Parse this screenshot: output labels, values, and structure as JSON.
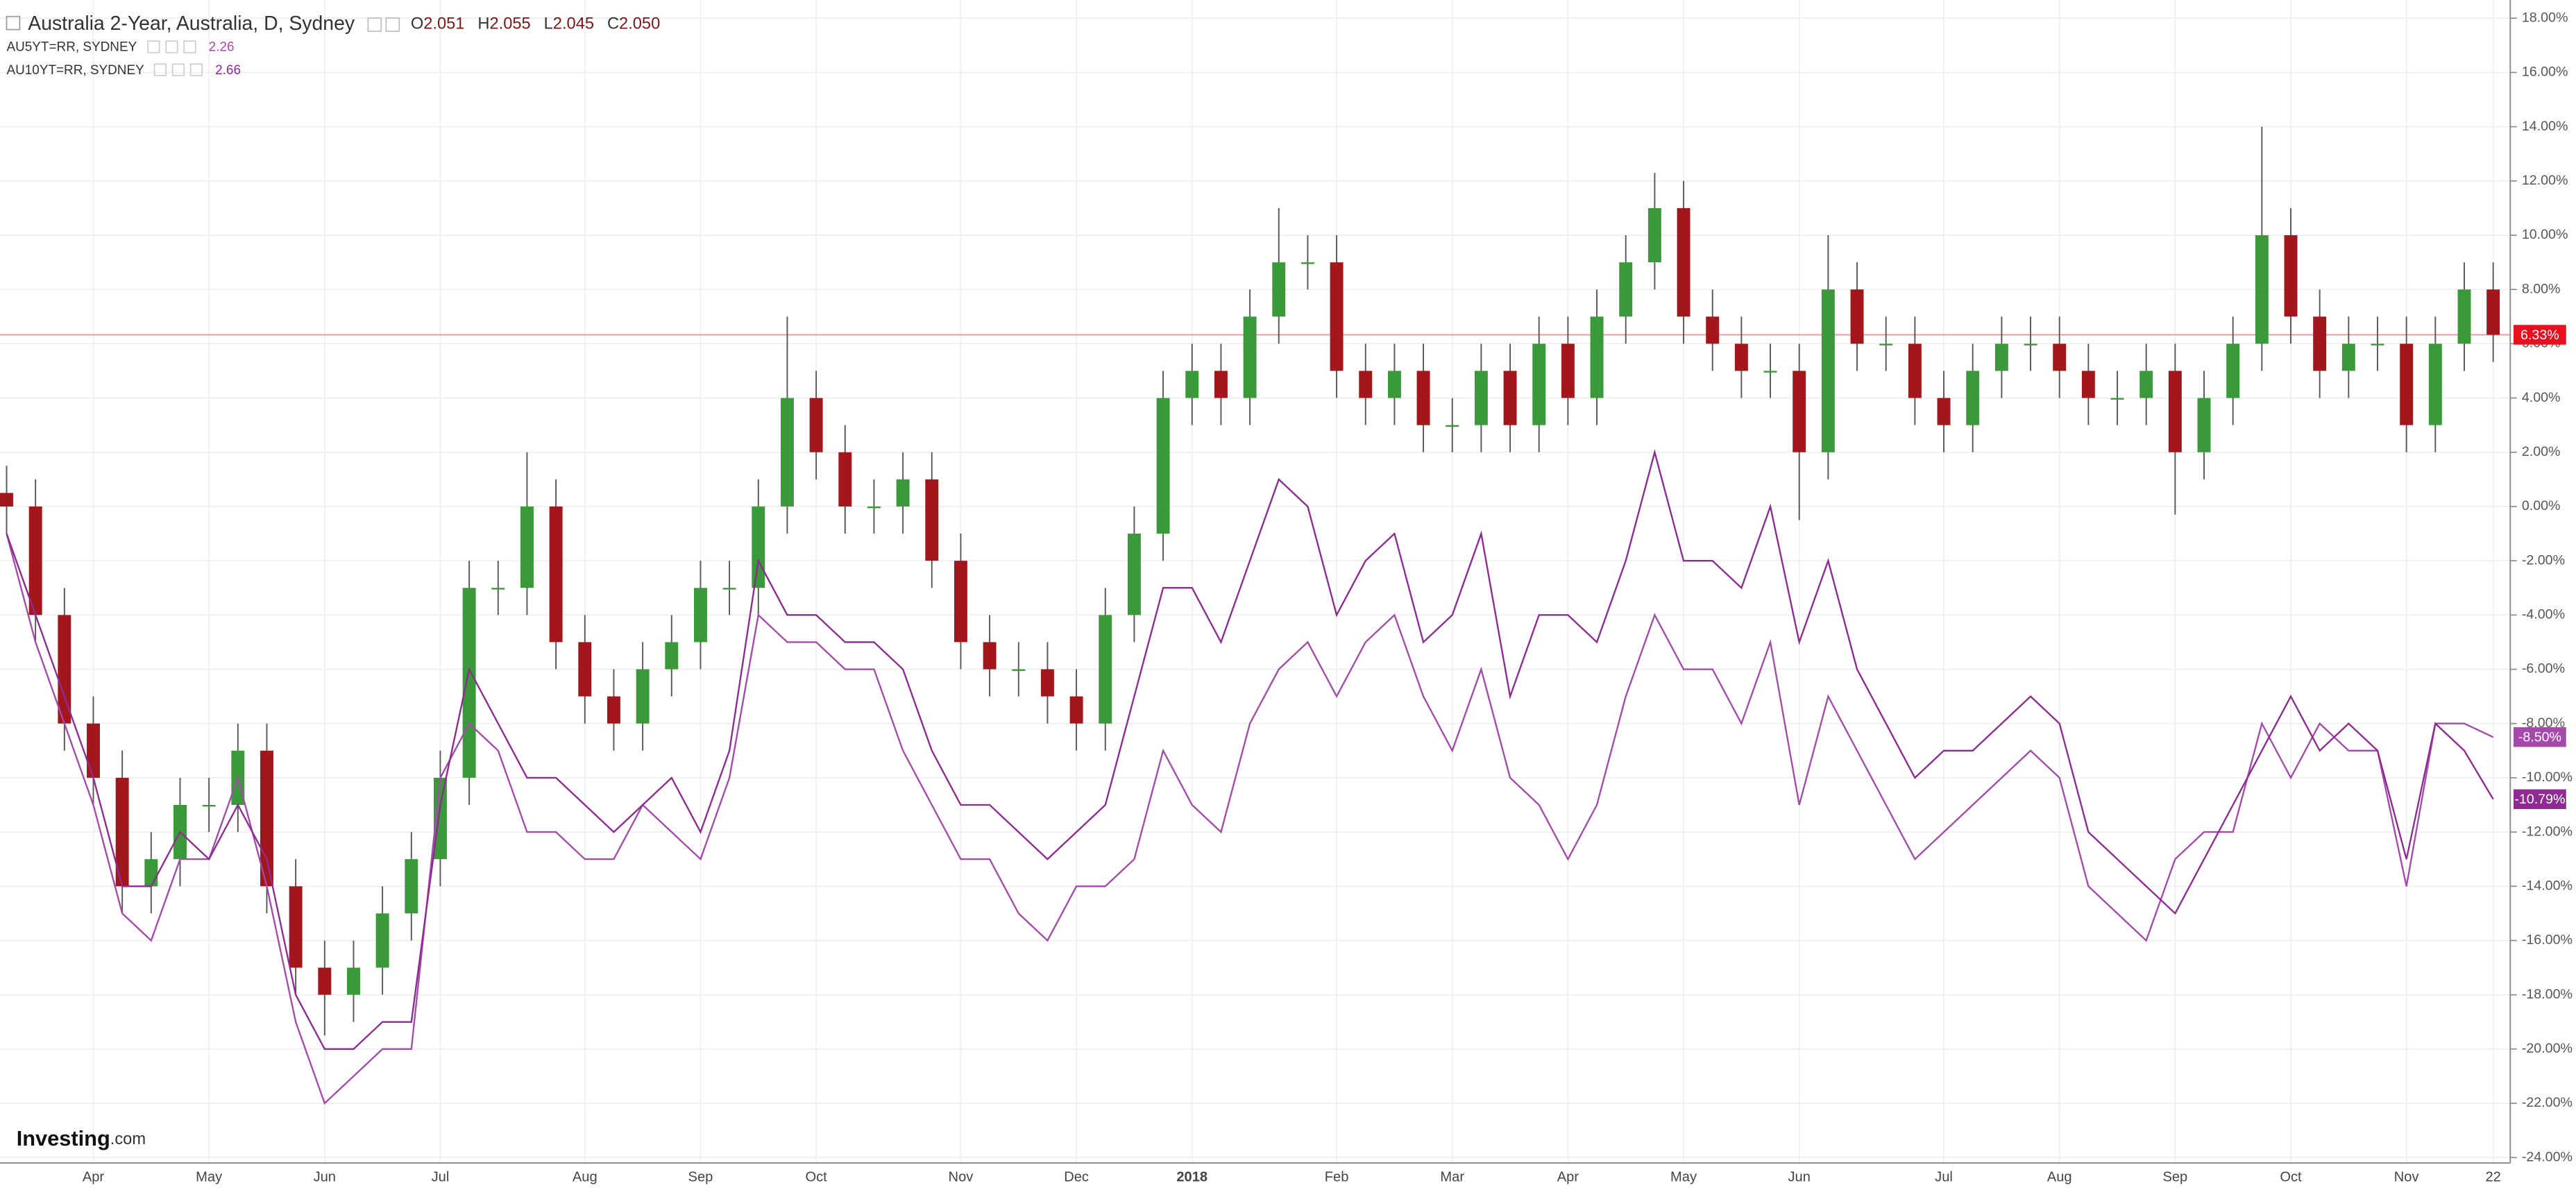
{
  "chart_data": {
    "type": "candlestick",
    "title": "Australia 2-Year, Australia, D, Sydney",
    "ohlc": [
      {
        "label": "O",
        "value": "2.051"
      },
      {
        "label": "H",
        "value": "2.055"
      },
      {
        "label": "L",
        "value": "2.045"
      },
      {
        "label": "C",
        "value": "2.050"
      }
    ],
    "categories": [
      null,
      null,
      null,
      "Apr",
      null,
      null,
      null,
      "May",
      null,
      null,
      null,
      "Jun",
      null,
      null,
      null,
      "Jul",
      null,
      null,
      null,
      null,
      "Aug",
      null,
      null,
      null,
      "Sep",
      null,
      null,
      null,
      "Oct",
      null,
      null,
      null,
      null,
      "Nov",
      null,
      null,
      null,
      "Dec",
      null,
      null,
      null,
      "2018",
      null,
      null,
      null,
      null,
      "Feb",
      null,
      null,
      null,
      "Mar",
      null,
      null,
      null,
      "Apr",
      null,
      null,
      null,
      "May",
      null,
      null,
      null,
      "Jun",
      null,
      null,
      null,
      null,
      "Jul",
      null,
      null,
      null,
      "Aug",
      null,
      null,
      null,
      "Sep",
      null,
      null,
      null,
      "Oct",
      null,
      null,
      null,
      "Nov",
      null,
      null,
      "22"
    ],
    "open": [
      0.5,
      0,
      -4,
      -8,
      -10,
      -14,
      -13,
      -11,
      -11,
      -9,
      -14,
      -17,
      -18,
      -17,
      -15,
      -13,
      -10,
      -3,
      -3,
      0,
      -5,
      -7,
      -8,
      -6,
      -5,
      -3,
      -3,
      0,
      4,
      2,
      0,
      0,
      1,
      -2,
      -5,
      -6,
      -6,
      -7,
      -8,
      -4,
      -1,
      4,
      5,
      4,
      7,
      9,
      9,
      5,
      4,
      5,
      3,
      3,
      5,
      3,
      6,
      4,
      7,
      9,
      11,
      7,
      6,
      5,
      5,
      2,
      8,
      6,
      6,
      4,
      3,
      5,
      6,
      6,
      5,
      4,
      4,
      5,
      2,
      4,
      6,
      10,
      7,
      5,
      6,
      6,
      3,
      6,
      8
    ],
    "high": [
      1.5,
      1,
      -3,
      -7,
      -9,
      -12,
      -10,
      -10,
      -8,
      -8,
      -13,
      -16,
      -16,
      -14,
      -12,
      -9,
      -2,
      -2,
      2,
      1,
      -4,
      -6,
      -5,
      -4,
      -2,
      -2,
      1,
      7,
      5,
      3,
      1,
      2,
      2,
      -1,
      -4,
      -5,
      -5,
      -6,
      -3,
      0,
      5,
      6,
      6,
      8,
      11,
      10,
      10,
      6,
      6,
      6,
      4,
      6,
      6,
      7,
      7,
      8,
      10,
      12.3,
      12,
      8,
      7,
      6,
      6,
      10,
      9,
      7,
      7,
      5,
      6,
      7,
      7,
      7,
      6,
      5,
      6,
      6,
      5,
      7,
      14,
      11,
      8,
      7,
      7,
      7,
      7,
      9,
      9
    ],
    "low": [
      -1,
      -5,
      -9,
      -11,
      -15,
      -15,
      -14,
      -12,
      -12,
      -15,
      -18,
      -19.5,
      -19,
      -18,
      -16,
      -14,
      -11,
      -4,
      -4,
      -6,
      -8,
      -9,
      -9,
      -7,
      -6,
      -4,
      -4,
      -1,
      1,
      -1,
      -1,
      -1,
      -3,
      -6,
      -7,
      -7,
      -8,
      -9,
      -9,
      -5,
      -2,
      3,
      3,
      3,
      6,
      8,
      4,
      3,
      3,
      2,
      2,
      2,
      2,
      2,
      3,
      3,
      6,
      8,
      6,
      5,
      4,
      4,
      -0.5,
      1,
      5,
      5,
      3,
      2,
      2,
      4,
      5,
      4,
      3,
      3,
      3,
      -0.3,
      1,
      3,
      5,
      6,
      4,
      4,
      5,
      2,
      2,
      5,
      5.33
    ],
    "close": [
      0,
      -4,
      -8,
      -10,
      -14,
      -13,
      -11,
      -11,
      -9,
      -14,
      -17,
      -18,
      -17,
      -15,
      -13,
      -10,
      -3,
      -3,
      0,
      -5,
      -7,
      -8,
      -6,
      -5,
      -3,
      -3,
      0,
      4,
      2,
      0,
      0,
      1,
      -2,
      -5,
      -6,
      -6,
      -7,
      -8,
      -4,
      -1,
      4,
      5,
      4,
      7,
      9,
      9,
      5,
      4,
      5,
      3,
      3,
      5,
      3,
      6,
      4,
      7,
      9,
      11,
      7,
      6,
      5,
      5,
      2,
      8,
      6,
      6,
      4,
      3,
      5,
      6,
      6,
      5,
      4,
      4,
      5,
      2,
      4,
      6,
      10,
      7,
      5,
      6,
      6,
      3,
      6,
      8,
      6.33
    ],
    "value_labels": [
      null,
      null,
      null,
      null,
      null,
      null,
      null,
      null,
      null,
      null,
      null,
      null,
      null,
      null,
      null,
      null,
      null,
      null,
      null,
      null,
      null,
      null,
      null,
      null,
      null,
      null,
      null,
      null,
      null,
      null,
      null,
      null,
      null,
      null,
      null,
      null,
      null,
      null,
      null,
      null,
      null,
      null,
      null,
      null,
      null,
      null,
      null,
      null,
      null,
      null,
      null,
      null,
      null,
      null,
      null,
      null,
      null,
      null,
      null,
      null,
      null,
      null,
      null,
      null,
      null,
      null,
      null,
      null,
      null,
      null,
      null,
      null,
      null,
      null,
      null,
      null,
      null,
      null,
      null,
      null,
      null,
      null,
      null,
      null,
      null,
      null,
      "6.33%"
    ],
    "up_color": "#3a9a3a",
    "down_color": "#a3161c",
    "price_line_color": "#f0a0a0",
    "series": [
      {
        "name": "AU5YT=RR, SYDNEY",
        "last": "2.26",
        "color": "#a54aab",
        "values": [
          -1,
          -5,
          -8,
          -11,
          -15,
          -16,
          -13,
          -13,
          -10,
          -14,
          -19,
          -22,
          -21,
          -20,
          -20,
          -10,
          -8,
          -9,
          -12,
          -12,
          -13,
          -13,
          -11,
          -12,
          -13,
          -10,
          -4,
          -5,
          -5,
          -6,
          -6,
          -9,
          -11,
          -13,
          -13,
          -15,
          -16,
          -14,
          -14,
          -13,
          -9,
          -11,
          -12,
          -8,
          -6,
          -5,
          -7,
          -5,
          -4,
          -7,
          -9,
          -6,
          -10,
          -11,
          -13,
          -11,
          -7,
          -4,
          -6,
          -6,
          -8,
          -5,
          -11,
          -7,
          -9,
          -11,
          -13,
          -12,
          -11,
          -10,
          -9,
          -10,
          -14,
          -15,
          -16,
          -13,
          -12,
          -12,
          -8,
          -10,
          -8,
          -9,
          -9,
          -14,
          -8,
          -8,
          -8.5
        ],
        "value_labels": [
          null,
          null,
          null,
          null,
          null,
          null,
          null,
          null,
          null,
          null,
          null,
          null,
          null,
          null,
          null,
          null,
          null,
          null,
          null,
          null,
          null,
          null,
          null,
          null,
          null,
          null,
          null,
          null,
          null,
          null,
          null,
          null,
          null,
          null,
          null,
          null,
          null,
          null,
          null,
          null,
          null,
          null,
          null,
          null,
          null,
          null,
          null,
          null,
          null,
          null,
          null,
          null,
          null,
          null,
          null,
          null,
          null,
          null,
          null,
          null,
          null,
          null,
          null,
          null,
          null,
          null,
          null,
          null,
          null,
          null,
          null,
          null,
          null,
          null,
          null,
          null,
          null,
          null,
          null,
          null,
          null,
          null,
          null,
          null,
          null,
          null,
          "-8.50%"
        ]
      },
      {
        "name": "AU10YT=RR, SYDNEY",
        "last": "2.66",
        "color": "#8e2a91",
        "values": [
          -1,
          -4,
          -7,
          -10,
          -14,
          -14,
          -12,
          -13,
          -11,
          -13,
          -18,
          -20,
          -20,
          -19,
          -19,
          -11,
          -6,
          -8,
          -10,
          -10,
          -11,
          -12,
          -11,
          -10,
          -12,
          -9,
          -2,
          -4,
          -4,
          -5,
          -5,
          -6,
          -9,
          -11,
          -11,
          -12,
          -13,
          -12,
          -11,
          -7,
          -3,
          -3,
          -5,
          -2,
          1,
          0,
          -4,
          -2,
          -1,
          -5,
          -4,
          -1,
          -7,
          -4,
          -4,
          -5,
          -2,
          2,
          -2,
          -2,
          -3,
          0,
          -5,
          -2,
          -6,
          -8,
          -10,
          -9,
          -9,
          -8,
          -7,
          -8,
          -12,
          -13,
          -14,
          -15,
          -13,
          -11,
          -9,
          -7,
          -9,
          -8,
          -9,
          -13,
          -8,
          -9,
          -10.79
        ],
        "value_labels": [
          null,
          null,
          null,
          null,
          null,
          null,
          null,
          null,
          null,
          null,
          null,
          null,
          null,
          null,
          null,
          null,
          null,
          null,
          null,
          null,
          null,
          null,
          null,
          null,
          null,
          null,
          null,
          null,
          null,
          null,
          null,
          null,
          null,
          null,
          null,
          null,
          null,
          null,
          null,
          null,
          null,
          null,
          null,
          null,
          null,
          null,
          null,
          null,
          null,
          null,
          null,
          null,
          null,
          null,
          null,
          null,
          null,
          null,
          null,
          null,
          null,
          null,
          null,
          null,
          null,
          null,
          null,
          null,
          null,
          null,
          null,
          null,
          null,
          null,
          null,
          null,
          null,
          null,
          null,
          null,
          null,
          null,
          null,
          null,
          null,
          null,
          "-10.79%"
        ]
      }
    ],
    "ylim": [
      -24.2,
      18.55
    ],
    "yticks": [
      {
        "value": 18,
        "label": "18.00%"
      },
      {
        "value": 16,
        "label": "16.00%"
      },
      {
        "value": 14,
        "label": "14.00%"
      },
      {
        "value": 12,
        "label": "12.00%"
      },
      {
        "value": 10,
        "label": "10.00%"
      },
      {
        "value": 8,
        "label": "8.00%"
      },
      {
        "value": 6,
        "label": "6.00%"
      },
      {
        "value": 4,
        "label": "4.00%"
      },
      {
        "value": 2,
        "label": "2.00%"
      },
      {
        "value": 0,
        "label": "0.00%"
      },
      {
        "value": -2,
        "label": "-2.00%"
      },
      {
        "value": -4,
        "label": "-4.00%"
      },
      {
        "value": -6,
        "label": "-6.00%"
      },
      {
        "value": -8,
        "label": "-8.00%"
      },
      {
        "value": -10,
        "label": "-10.00%"
      },
      {
        "value": -12,
        "label": "-12.00%"
      },
      {
        "value": -14,
        "label": "-14.00%"
      },
      {
        "value": -16,
        "label": "-16.00%"
      },
      {
        "value": -18,
        "label": "-18.00%"
      },
      {
        "value": -20,
        "label": "-20.00%"
      },
      {
        "value": -22,
        "label": "-22.00%"
      },
      {
        "value": -24,
        "label": "-24.00%"
      }
    ],
    "grid": true,
    "logo_main": "Investing",
    "logo_suffix": ".com"
  }
}
